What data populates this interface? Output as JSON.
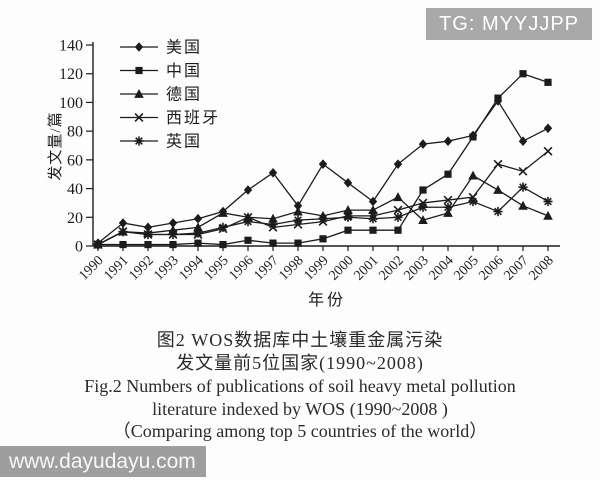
{
  "badges": {
    "top_right": "TG: MYYJJPP",
    "bottom_left": "www.dayudayu.com"
  },
  "caption": {
    "cn_line1": "图2  WOS数据库中土壤重金属污染",
    "cn_line2": "发文量前5位国家(1990~2008)",
    "en_line1": "Fig.2  Numbers of publications of soil heavy metal pollution",
    "en_line2": "literature indexed by WOS (1990~2008 )",
    "en_line3": "（Comparing among top 5 countries of the world）"
  },
  "chart_data": {
    "type": "line",
    "title": "",
    "xlabel": "年份",
    "ylabel": "发文量/篇",
    "ylim": [
      0,
      140
    ],
    "y_tick_step": 20,
    "grid": false,
    "legend_position": "top-left-inside",
    "line_color": "#1c1c1c",
    "categories": [
      1990,
      1991,
      1992,
      1993,
      1994,
      1995,
      1996,
      1997,
      1998,
      1999,
      2000,
      2001,
      2002,
      2003,
      2004,
      2005,
      2006,
      2007,
      2008
    ],
    "series": [
      {
        "name": "美国",
        "marker": "diamond",
        "values": [
          2,
          16,
          13,
          16,
          19,
          24,
          39,
          51,
          28,
          57,
          44,
          31,
          57,
          71,
          73,
          77,
          101,
          73,
          82
        ]
      },
      {
        "name": "中国",
        "marker": "square",
        "values": [
          1,
          1,
          1,
          1,
          2,
          1,
          4,
          2,
          2,
          5,
          11,
          11,
          11,
          39,
          50,
          76,
          103,
          120,
          114
        ]
      },
      {
        "name": "德国",
        "marker": "triangle",
        "values": [
          1,
          10,
          9,
          11,
          13,
          23,
          20,
          19,
          24,
          21,
          25,
          25,
          34,
          18,
          23,
          49,
          39,
          28,
          21
        ]
      },
      {
        "name": "西班牙",
        "marker": "x",
        "values": [
          1,
          10,
          8,
          8,
          8,
          12,
          20,
          13,
          15,
          17,
          21,
          21,
          25,
          30,
          32,
          34,
          57,
          52,
          66
        ]
      },
      {
        "name": "英国",
        "marker": "asterisk",
        "values": [
          1,
          10,
          8,
          8,
          9,
          13,
          17,
          15,
          18,
          19,
          20,
          19,
          20,
          27,
          27,
          31,
          24,
          41,
          31
        ]
      }
    ]
  }
}
